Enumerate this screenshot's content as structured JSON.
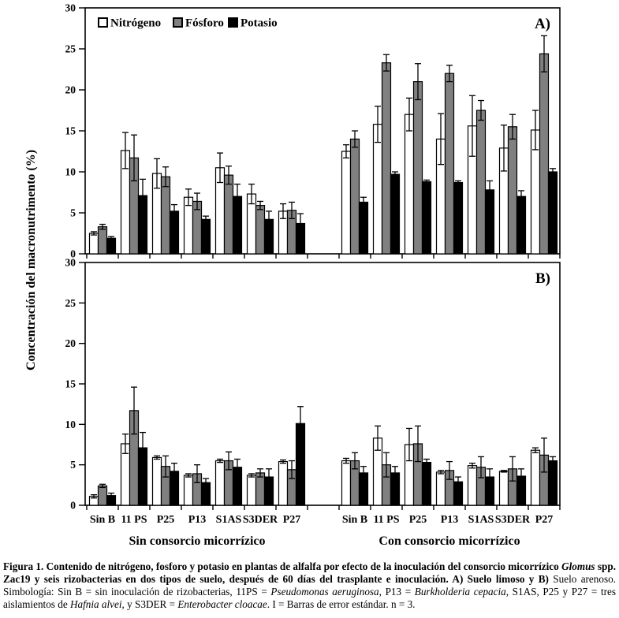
{
  "axes": {
    "y_title": "Concentración del macronutrimento (%)"
  },
  "chart_data": [
    {
      "panel": "A",
      "panel_label": "A)",
      "type": "bar",
      "ylim": [
        0,
        30
      ],
      "yticks": [
        0,
        5,
        10,
        15,
        20,
        25,
        30
      ],
      "grid": false,
      "legend_position": "top-left-inside",
      "sections": [
        {
          "label": "Sin consorcio micorrízico",
          "categories": [
            "Sin B",
            "11 PS",
            "P25",
            "P13",
            "S1AS",
            "S3DER",
            "P27"
          ]
        },
        {
          "label": "Con consorcio micorrízico",
          "categories": [
            "Sin B",
            "11 PS",
            "P25",
            "P13",
            "S1AS",
            "S3DER",
            "P27"
          ]
        }
      ],
      "series": [
        {
          "name": "Nitrógeno",
          "fill": "#ffffff",
          "values": [
            [
              2.5,
              12.6,
              9.8,
              6.9,
              10.5,
              7.3,
              5.2
            ],
            [
              12.5,
              15.8,
              17.0,
              14.0,
              15.6,
              12.9,
              15.1
            ]
          ],
          "errors": [
            [
              0.2,
              2.2,
              1.8,
              1.0,
              1.8,
              1.2,
              0.9
            ],
            [
              0.8,
              2.2,
              2.0,
              3.1,
              3.7,
              2.8,
              2.4
            ]
          ]
        },
        {
          "name": "Fósforo",
          "fill": "#808080",
          "values": [
            [
              3.3,
              11.7,
              9.4,
              6.4,
              9.6,
              5.9,
              5.3
            ],
            [
              14.0,
              23.3,
              21.0,
              22.0,
              17.5,
              15.5,
              24.4
            ]
          ],
          "errors": [
            [
              0.3,
              2.8,
              1.2,
              1.0,
              1.1,
              0.5,
              1.0
            ],
            [
              1.0,
              1.0,
              2.2,
              1.0,
              1.2,
              1.5,
              2.2
            ]
          ]
        },
        {
          "name": "Potasio",
          "fill": "#000000",
          "values": [
            [
              1.9,
              7.1,
              5.2,
              4.2,
              7.0,
              4.2,
              3.7
            ],
            [
              6.3,
              9.7,
              8.8,
              8.7,
              7.8,
              7.0,
              10.0
            ]
          ],
          "errors": [
            [
              0.2,
              2.0,
              0.8,
              0.4,
              1.5,
              1.0,
              1.2
            ],
            [
              0.6,
              0.3,
              0.2,
              0.2,
              1.1,
              0.7,
              0.4
            ]
          ]
        }
      ],
      "legend": {
        "show": true,
        "items": [
          "Nitrógeno",
          "Fósforo",
          "Potasio"
        ]
      }
    },
    {
      "panel": "B",
      "panel_label": "B)",
      "type": "bar",
      "ylim": [
        0,
        30
      ],
      "yticks": [
        0,
        5,
        10,
        15,
        20,
        25,
        30
      ],
      "grid": false,
      "sections": [
        {
          "label": "Sin consorcio micorrízico",
          "categories": [
            "Sin B",
            "11 PS",
            "P25",
            "P13",
            "S1AS",
            "S3DER",
            "P27"
          ]
        },
        {
          "label": "Con consorcio micorrízico",
          "categories": [
            "Sin B",
            "11 PS",
            "P25",
            "P13",
            "S1AS",
            "S3DER",
            "P27"
          ]
        }
      ],
      "series": [
        {
          "name": "Nitrógeno",
          "fill": "#ffffff",
          "values": [
            [
              1.1,
              7.6,
              5.9,
              3.7,
              5.5,
              3.7,
              5.4
            ],
            [
              5.5,
              8.3,
              7.5,
              4.1,
              4.9,
              4.2,
              6.8
            ]
          ],
          "errors": [
            [
              0.2,
              1.2,
              0.2,
              0.2,
              0.2,
              0.2,
              0.2
            ],
            [
              0.3,
              1.5,
              2.0,
              0.2,
              0.3,
              0.1,
              0.3
            ]
          ]
        },
        {
          "name": "Fósforo",
          "fill": "#808080",
          "values": [
            [
              2.4,
              11.7,
              4.8,
              3.9,
              5.5,
              4.0,
              4.4
            ],
            [
              5.5,
              5.0,
              7.6,
              4.3,
              4.7,
              4.5,
              6.2
            ]
          ],
          "errors": [
            [
              0.2,
              2.9,
              1.3,
              1.1,
              1.1,
              0.5,
              1.1
            ],
            [
              1.0,
              1.5,
              2.2,
              1.1,
              1.3,
              1.5,
              2.1
            ]
          ]
        },
        {
          "name": "Potasio",
          "fill": "#000000",
          "values": [
            [
              1.2,
              7.1,
              4.2,
              2.8,
              4.7,
              3.5,
              10.1
            ],
            [
              4.0,
              4.0,
              5.3,
              2.9,
              3.5,
              3.6,
              5.5
            ]
          ],
          "errors": [
            [
              0.3,
              1.9,
              1.0,
              0.5,
              1.0,
              1.0,
              2.1
            ],
            [
              0.8,
              0.8,
              0.4,
              0.6,
              1.0,
              0.9,
              0.5
            ]
          ]
        }
      ],
      "legend": {
        "show": false,
        "items": []
      }
    }
  ],
  "caption": {
    "segments": [
      {
        "text": "Figura 1. Contenido de nitrógeno, fosforo y potasio en plantas de alfalfa por efecto de la inoculación del consorcio micorrízico ",
        "bold": true,
        "italic": false
      },
      {
        "text": "Glomus",
        "bold": true,
        "italic": true
      },
      {
        "text": " spp. Zac19 y seis rizobacterias en dos tipos de suelo, después de 60 días del trasplante e inoculación. A) Suelo limoso y B) ",
        "bold": true,
        "italic": false
      },
      {
        "text": "Suelo arenoso. Simbología: Sin B = sin inoculación de rizobacterias, 11PS = ",
        "bold": false,
        "italic": false
      },
      {
        "text": "Pseudomonas aeruginosa",
        "bold": false,
        "italic": true
      },
      {
        "text": ", P13 = ",
        "bold": false,
        "italic": false
      },
      {
        "text": "Burkholderia cepacia",
        "bold": false,
        "italic": true
      },
      {
        "text": ", S1AS, P25 y P27 = tres aislamientos de ",
        "bold": false,
        "italic": false
      },
      {
        "text": "Hafnia alvei",
        "bold": false,
        "italic": true
      },
      {
        "text": ", y S3DER = ",
        "bold": false,
        "italic": false
      },
      {
        "text": "Enterobacter cloacae",
        "bold": false,
        "italic": true
      },
      {
        "text": ". I = Barras de error estándar. n = 3.",
        "bold": false,
        "italic": false
      }
    ]
  }
}
